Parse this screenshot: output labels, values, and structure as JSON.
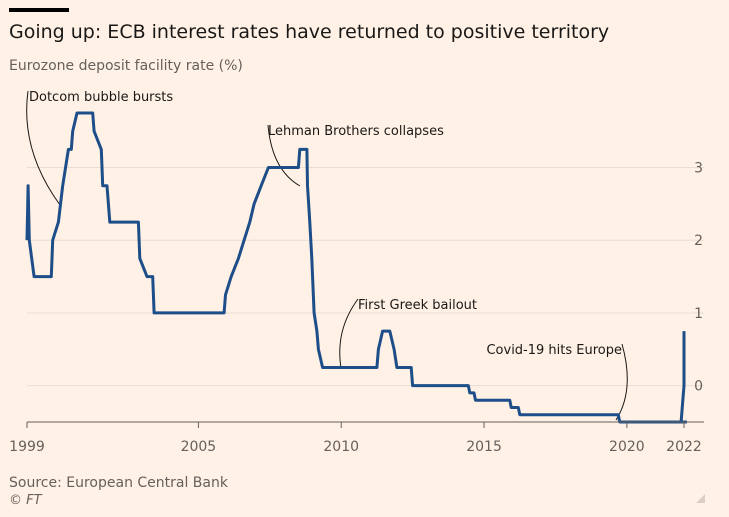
{
  "header": {
    "title": "Going up: ECB interest rates have returned to positive territory",
    "subtitle": "Eurozone deposit facility rate (%)"
  },
  "footer": {
    "source": "Source: European Central Bank",
    "credit": "© FT"
  },
  "colors": {
    "background": "#fff1e5",
    "line": "#1d4e89",
    "grid": "#e8ddd3",
    "text": "#66605c"
  },
  "chart_data": {
    "type": "line",
    "title": "Going up: ECB interest rates have returned to positive territory",
    "subtitle": "Eurozone deposit facility rate (%)",
    "xlabel": "",
    "ylabel": "",
    "xlim": [
      1999.0,
      2022.1
    ],
    "ylim": [
      -0.5,
      3.75
    ],
    "grid": true,
    "y_axis_position": "right",
    "x_ticks": [
      {
        "value": 1999,
        "label": "1999"
      },
      {
        "value": 2005,
        "label": "2005"
      },
      {
        "value": 2010,
        "label": "2010"
      },
      {
        "value": 2015,
        "label": "2015"
      },
      {
        "value": 2020,
        "label": "2020"
      },
      {
        "value": 2022,
        "label": "2022"
      }
    ],
    "y_ticks": [
      {
        "value": 0,
        "label": "0"
      },
      {
        "value": 1,
        "label": "1"
      },
      {
        "value": 2,
        "label": "2"
      },
      {
        "value": 3,
        "label": "3"
      }
    ],
    "series": [
      {
        "points": [
          [
            1999.0,
            2.0
          ],
          [
            1999.04,
            2.75
          ],
          [
            1999.08,
            2.0
          ],
          [
            1999.25,
            1.5
          ],
          [
            1999.85,
            1.5
          ],
          [
            1999.9,
            2.0
          ],
          [
            2000.1,
            2.25
          ],
          [
            2000.25,
            2.75
          ],
          [
            2000.45,
            3.25
          ],
          [
            2000.55,
            3.25
          ],
          [
            2000.6,
            3.5
          ],
          [
            2000.75,
            3.75
          ],
          [
            2001.3,
            3.75
          ],
          [
            2001.35,
            3.5
          ],
          [
            2001.6,
            3.25
          ],
          [
            2001.65,
            2.75
          ],
          [
            2001.8,
            2.75
          ],
          [
            2001.9,
            2.25
          ],
          [
            2002.9,
            2.25
          ],
          [
            2002.95,
            1.75
          ],
          [
            2003.2,
            1.5
          ],
          [
            2003.4,
            1.5
          ],
          [
            2003.45,
            1.0
          ],
          [
            2005.9,
            1.0
          ],
          [
            2005.95,
            1.25
          ],
          [
            2006.15,
            1.5
          ],
          [
            2006.4,
            1.75
          ],
          [
            2006.6,
            2.0
          ],
          [
            2006.8,
            2.25
          ],
          [
            2006.95,
            2.5
          ],
          [
            2007.2,
            2.75
          ],
          [
            2007.45,
            3.0
          ],
          [
            2008.5,
            3.0
          ],
          [
            2008.55,
            3.25
          ],
          [
            2008.8,
            3.25
          ],
          [
            2008.82,
            2.75
          ],
          [
            2008.9,
            2.25
          ],
          [
            2008.97,
            1.75
          ],
          [
            2009.05,
            1.0
          ],
          [
            2009.15,
            0.75
          ],
          [
            2009.2,
            0.5
          ],
          [
            2009.35,
            0.25
          ],
          [
            2011.25,
            0.25
          ],
          [
            2011.3,
            0.5
          ],
          [
            2011.45,
            0.75
          ],
          [
            2011.7,
            0.75
          ],
          [
            2011.85,
            0.5
          ],
          [
            2011.95,
            0.25
          ],
          [
            2012.45,
            0.25
          ],
          [
            2012.5,
            0.0
          ],
          [
            2014.45,
            0.0
          ],
          [
            2014.5,
            -0.1
          ],
          [
            2014.65,
            -0.1
          ],
          [
            2014.7,
            -0.2
          ],
          [
            2015.9,
            -0.2
          ],
          [
            2015.95,
            -0.3
          ],
          [
            2016.2,
            -0.3
          ],
          [
            2016.25,
            -0.4
          ],
          [
            2019.7,
            -0.4
          ],
          [
            2019.75,
            -0.5
          ],
          [
            2022.5,
            -0.5
          ]
        ]
      }
    ],
    "annotations": [
      {
        "text": "Dotcom bubble bursts",
        "x": 2000.2,
        "y": 2.55
      },
      {
        "text": "Lehman Brothers collapses",
        "x": 2008.6,
        "y": 2.8
      },
      {
        "text": "First Greek bailout",
        "x": 2010.2,
        "y": 0.25
      },
      {
        "text": "Covid-19 hits Europe",
        "x": 2020.1,
        "y": -0.5
      }
    ]
  }
}
